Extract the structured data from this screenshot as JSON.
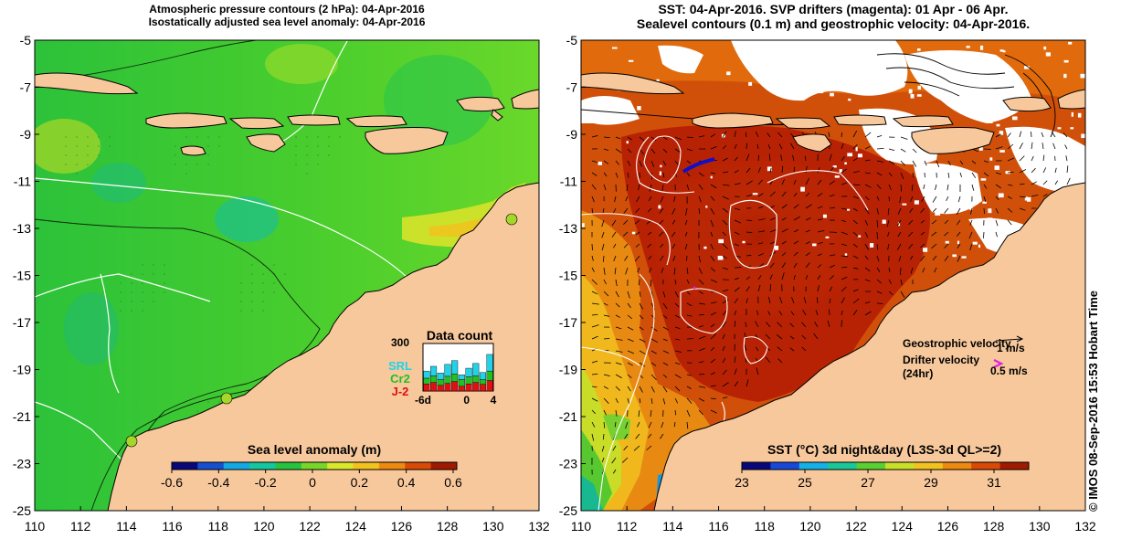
{
  "left_panel": {
    "title_line1": "Atmospheric pressure contours (2 hPa): 04-Apr-2016",
    "title_line2": "Isostatically adjusted sea level anomaly: 04-Apr-2016",
    "colorbar": {
      "label": "Sea level anomaly (m)",
      "ticks": [
        "-0.6",
        "-0.4",
        "-0.2",
        "0",
        "0.2",
        "0.4",
        "0.6"
      ],
      "colors": [
        "#08087a",
        "#1450d0",
        "#12a8e6",
        "#13c8a0",
        "#26c43e",
        "#78d62a",
        "#d8e82a",
        "#f2c21e",
        "#ee8a10",
        "#d84a06",
        "#a01a02"
      ]
    },
    "data_count": {
      "title": "Data count",
      "ymax_label": "300",
      "x_ticks": [
        "-6d",
        "0",
        "4"
      ],
      "legend": [
        "SRL",
        "Cr2",
        "J-2"
      ],
      "legend_colors": [
        "#22d2e8",
        "#22c022",
        "#e01010"
      ],
      "days": [
        {
          "j2": 0.15,
          "cr2": 0.12,
          "srl": 0.15
        },
        {
          "j2": 0.18,
          "cr2": 0.14,
          "srl": 0.2
        },
        {
          "j2": 0.12,
          "cr2": 0.12,
          "srl": 0.14
        },
        {
          "j2": 0.16,
          "cr2": 0.15,
          "srl": 0.25
        },
        {
          "j2": 0.2,
          "cr2": 0.16,
          "srl": 0.28
        },
        {
          "j2": 0.1,
          "cr2": 0.14,
          "srl": 0.1
        },
        {
          "j2": 0.15,
          "cr2": 0.15,
          "srl": 0.18
        },
        {
          "j2": 0.18,
          "cr2": 0.14,
          "srl": 0.26
        },
        {
          "j2": 0.14,
          "cr2": 0.1,
          "srl": 0.15
        },
        {
          "j2": 0.22,
          "cr2": 0.2,
          "srl": 0.35
        }
      ]
    }
  },
  "right_panel": {
    "title_line1": "SST: 04-Apr-2016. SVP drifters (magenta): 01 Apr - 06 Apr.",
    "title_line2": "Sealevel contours (0.1 m) and geostrophic velocity: 04-Apr-2016.",
    "colorbar": {
      "label": "SST (°C) 3d night&day (L3S-3d QL>=2)",
      "ticks": [
        "23",
        "25",
        "27",
        "29",
        "31"
      ],
      "colors": [
        "#08087a",
        "#1848d8",
        "#14b0e8",
        "#18c898",
        "#58d030",
        "#c8e028",
        "#f2c21e",
        "#ee8a10",
        "#d84a06",
        "#a01a02"
      ]
    },
    "legend": {
      "geo_label": "Geostrophic velocity",
      "geo_scale": "1 m/s",
      "drifter_label_1": "Drifter velocity",
      "drifter_label_2": "(24hr)",
      "drifter_scale": "0.5 m/s"
    }
  },
  "axes": {
    "lon_ticks": [
      "110",
      "112",
      "114",
      "116",
      "118",
      "120",
      "122",
      "124",
      "126",
      "128",
      "130",
      "132"
    ],
    "lat_ticks": [
      "-5",
      "-7",
      "-9",
      "-11",
      "-13",
      "-15",
      "-17",
      "-19",
      "-21",
      "-23",
      "-25"
    ],
    "lon_range": [
      110,
      132
    ],
    "lat_range": [
      -25,
      -5
    ]
  },
  "colors": {
    "land": "#f7c89c",
    "ocean_green": "#3ccc34",
    "ocean_warm": "#c02a04",
    "coastline": "#000000",
    "cloud": "#ffffff"
  },
  "credit": "© IMOS 08-Sep-2016 15:53 Hobart Time"
}
